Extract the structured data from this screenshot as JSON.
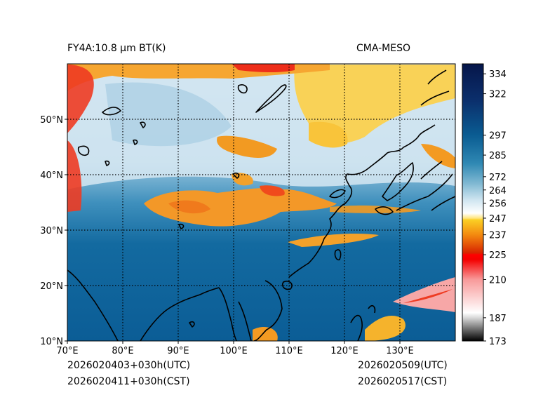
{
  "title_left": "FY4A:10.8 µm BT(K)",
  "title_right": "CMA-MESO",
  "footer": {
    "init_utc": "2026020403+030h(UTC)",
    "init_cst": "2026020411+030h(CST)",
    "valid_utc": "2026020509(UTC)",
    "valid_cst": "2026020517(CST)"
  },
  "axes": {
    "lon_range": [
      70,
      140
    ],
    "lat_range": [
      10,
      60
    ],
    "x_ticks": [
      {
        "value": 70,
        "label": "70°E"
      },
      {
        "value": 80,
        "label": "80°E"
      },
      {
        "value": 90,
        "label": "90°E"
      },
      {
        "value": 100,
        "label": "100°E"
      },
      {
        "value": 110,
        "label": "110°E"
      },
      {
        "value": 120,
        "label": "120°E"
      },
      {
        "value": 130,
        "label": "130°E"
      }
    ],
    "y_ticks": [
      {
        "value": 10,
        "label": "10°N"
      },
      {
        "value": 20,
        "label": "20°N"
      },
      {
        "value": 30,
        "label": "30°N"
      },
      {
        "value": 40,
        "label": "40°N"
      },
      {
        "value": 50,
        "label": "50°N"
      }
    ],
    "gridlines": true
  },
  "colorbar": {
    "min": 173,
    "max": 340,
    "ticks": [
      334,
      322,
      297,
      285,
      272,
      264,
      256,
      247,
      237,
      225,
      210,
      187,
      173
    ],
    "stops": [
      {
        "value": 173,
        "color": "#000000"
      },
      {
        "value": 187,
        "color": "#d8d8d8"
      },
      {
        "value": 190,
        "color": "#ffffff"
      },
      {
        "value": 210,
        "color": "#f89a9a"
      },
      {
        "value": 222,
        "color": "#f40000"
      },
      {
        "value": 225,
        "color": "#ff0000"
      },
      {
        "value": 226,
        "color": "#d82400"
      },
      {
        "value": 237,
        "color": "#f38a10"
      },
      {
        "value": 246,
        "color": "#fbcf24"
      },
      {
        "value": 247,
        "color": "#ffe680"
      },
      {
        "value": 250,
        "color": "#ffffff"
      },
      {
        "value": 258,
        "color": "#cfe5f0"
      },
      {
        "value": 268,
        "color": "#7fb8d2"
      },
      {
        "value": 280,
        "color": "#2f88b3"
      },
      {
        "value": 297,
        "color": "#0a5c92"
      },
      {
        "value": 318,
        "color": "#0b2f6c"
      },
      {
        "value": 340,
        "color": "#06164a"
      }
    ]
  },
  "colors": {
    "ocean_warm": "#0c5f98",
    "land_cold": "#c9e1ee",
    "cloud_mid": "#f39a1e",
    "cloud_high": "#f01a14",
    "cloud_top": "#fcd24a",
    "coast": "#000000"
  }
}
